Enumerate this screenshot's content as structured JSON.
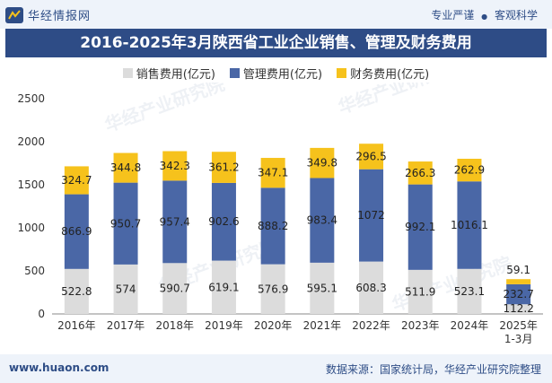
{
  "header": {
    "brand": "华经情报网",
    "tagline_left": "专业严谨",
    "tagline_sep": "●",
    "tagline_right": "客观科学"
  },
  "footer": {
    "url": "www.huaon.com",
    "source": "数据来源：国家统计局，华经产业研究院整理"
  },
  "colors": {
    "sales": "#dcdcdc",
    "management": "#4a67a6",
    "finance": "#f6c21c",
    "title_bg": "#2e4c86"
  },
  "chart_data": {
    "type": "bar",
    "stacked": true,
    "title": "2016-2025年3月陕西省工业企业销售、管理及财务费用",
    "categories": [
      "2016年",
      "2017年",
      "2018年",
      "2019年",
      "2020年",
      "2021年",
      "2022年",
      "2023年",
      "2024年",
      "2025年\n1-3月"
    ],
    "series": [
      {
        "name": "销售费用(亿元)",
        "values": [
          522.8,
          574,
          590.7,
          619.1,
          576.9,
          595.1,
          608.3,
          511.9,
          523.1,
          112.2
        ],
        "labels": [
          "522.8",
          "574",
          "590.7",
          "619.1",
          "576.9",
          "595.1",
          "608.3",
          "511.9",
          "523.1",
          "112.2"
        ]
      },
      {
        "name": "管理费用(亿元)",
        "values": [
          866.9,
          950.7,
          957.4,
          902.6,
          888.2,
          983.4,
          1072,
          992.1,
          1016.1,
          232.7
        ],
        "labels": [
          "866.9",
          "950.7",
          "957.4",
          "902.6",
          "888.2",
          "983.4",
          "1072",
          "992.1",
          "1016.1",
          "232.7"
        ]
      },
      {
        "name": "财务费用(亿元)",
        "values": [
          324.7,
          344.8,
          342.3,
          361.2,
          347.1,
          349.8,
          296.5,
          266.3,
          262.9,
          59.1
        ],
        "labels": [
          "324.7",
          "344.8",
          "342.3",
          "361.2",
          "347.1",
          "349.8",
          "296.5",
          "266.3",
          "262.9",
          "59.1"
        ]
      }
    ],
    "ylim": [
      0,
      2500
    ],
    "yticks": [
      0,
      500,
      1000,
      1500,
      2000,
      2500
    ],
    "xlabel": "",
    "ylabel": "",
    "legend_position": "top"
  }
}
